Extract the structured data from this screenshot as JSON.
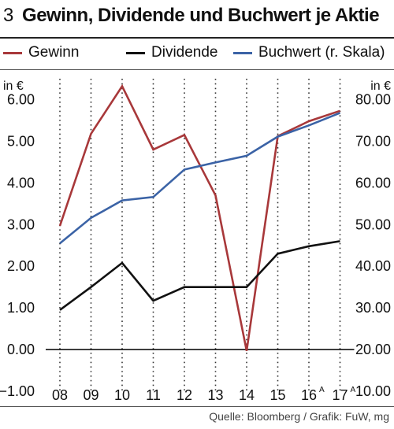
{
  "header": {
    "number": "3",
    "title": "Gewinn, Dividende und Buchwert je Aktie"
  },
  "source": "Quelle: Bloomberg / Grafik: FuW, mg",
  "chart_data": {
    "type": "line",
    "categories": [
      "08",
      "09",
      "10",
      "11",
      "12",
      "13",
      "14",
      "15",
      "16",
      "17"
    ],
    "category_superscripts": [
      "",
      "",
      "",
      "",
      "",
      "",
      "",
      "",
      "A",
      "A"
    ],
    "left_axis": {
      "unit": "in €",
      "ticks": [
        "6.00",
        "5.00",
        "4.00",
        "3.00",
        "2.00",
        "1.00",
        "0.00",
        "−1.00"
      ],
      "ylim": [
        -1,
        6.5
      ]
    },
    "right_axis": {
      "unit": "in €",
      "ticks": [
        "80.00",
        "70.00",
        "60.00",
        "50.00",
        "40.00",
        "30.00",
        "20.00",
        "10.00"
      ],
      "ylim": [
        10,
        85
      ]
    },
    "grid": "vertical dotted",
    "zero_line": true,
    "series": [
      {
        "name": "Gewinn",
        "axis": "left",
        "color": "#a8383a",
        "values": [
          2.97,
          5.18,
          6.32,
          4.8,
          5.15,
          3.7,
          -0.03,
          5.12,
          5.48,
          5.73
        ]
      },
      {
        "name": "Dividende",
        "axis": "left",
        "color": "#111111",
        "values": [
          0.95,
          1.5,
          2.08,
          1.17,
          1.5,
          1.5,
          1.5,
          2.3,
          2.48,
          2.6
        ]
      },
      {
        "name": "Buchwert (r. Skala)",
        "axis": "right",
        "color": "#3b63a6",
        "values": [
          45.5,
          51.6,
          55.8,
          56.6,
          63.2,
          64.9,
          66.5,
          71.1,
          73.8,
          76.8
        ]
      }
    ]
  }
}
